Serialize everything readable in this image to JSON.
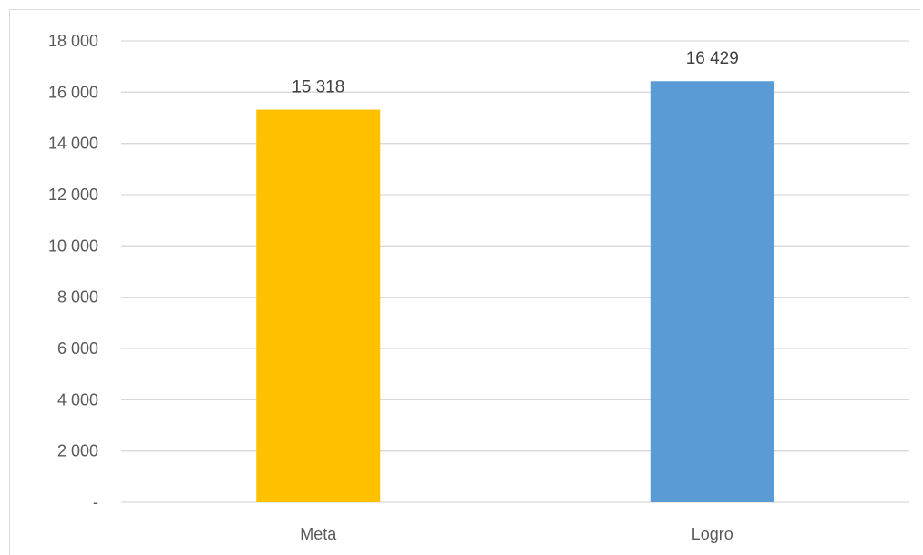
{
  "chart_data": {
    "type": "bar",
    "categories": [
      "Meta",
      "Logro"
    ],
    "values": [
      15318,
      16429
    ],
    "data_labels": [
      "15 318",
      "16 429"
    ],
    "colors": [
      "#FFC000",
      "#5B9BD5"
    ],
    "ylim": [
      0,
      18000
    ],
    "yticks": [
      0,
      2000,
      4000,
      6000,
      8000,
      10000,
      12000,
      14000,
      16000,
      18000
    ],
    "ytick_labels": [
      "-",
      "2 000",
      "4 000",
      "6 000",
      "8 000",
      "10 000",
      "12 000",
      "14 000",
      "16 000",
      "18 000"
    ],
    "grid": true,
    "legend": "none",
    "gridline_color": "#d9d9d9"
  }
}
